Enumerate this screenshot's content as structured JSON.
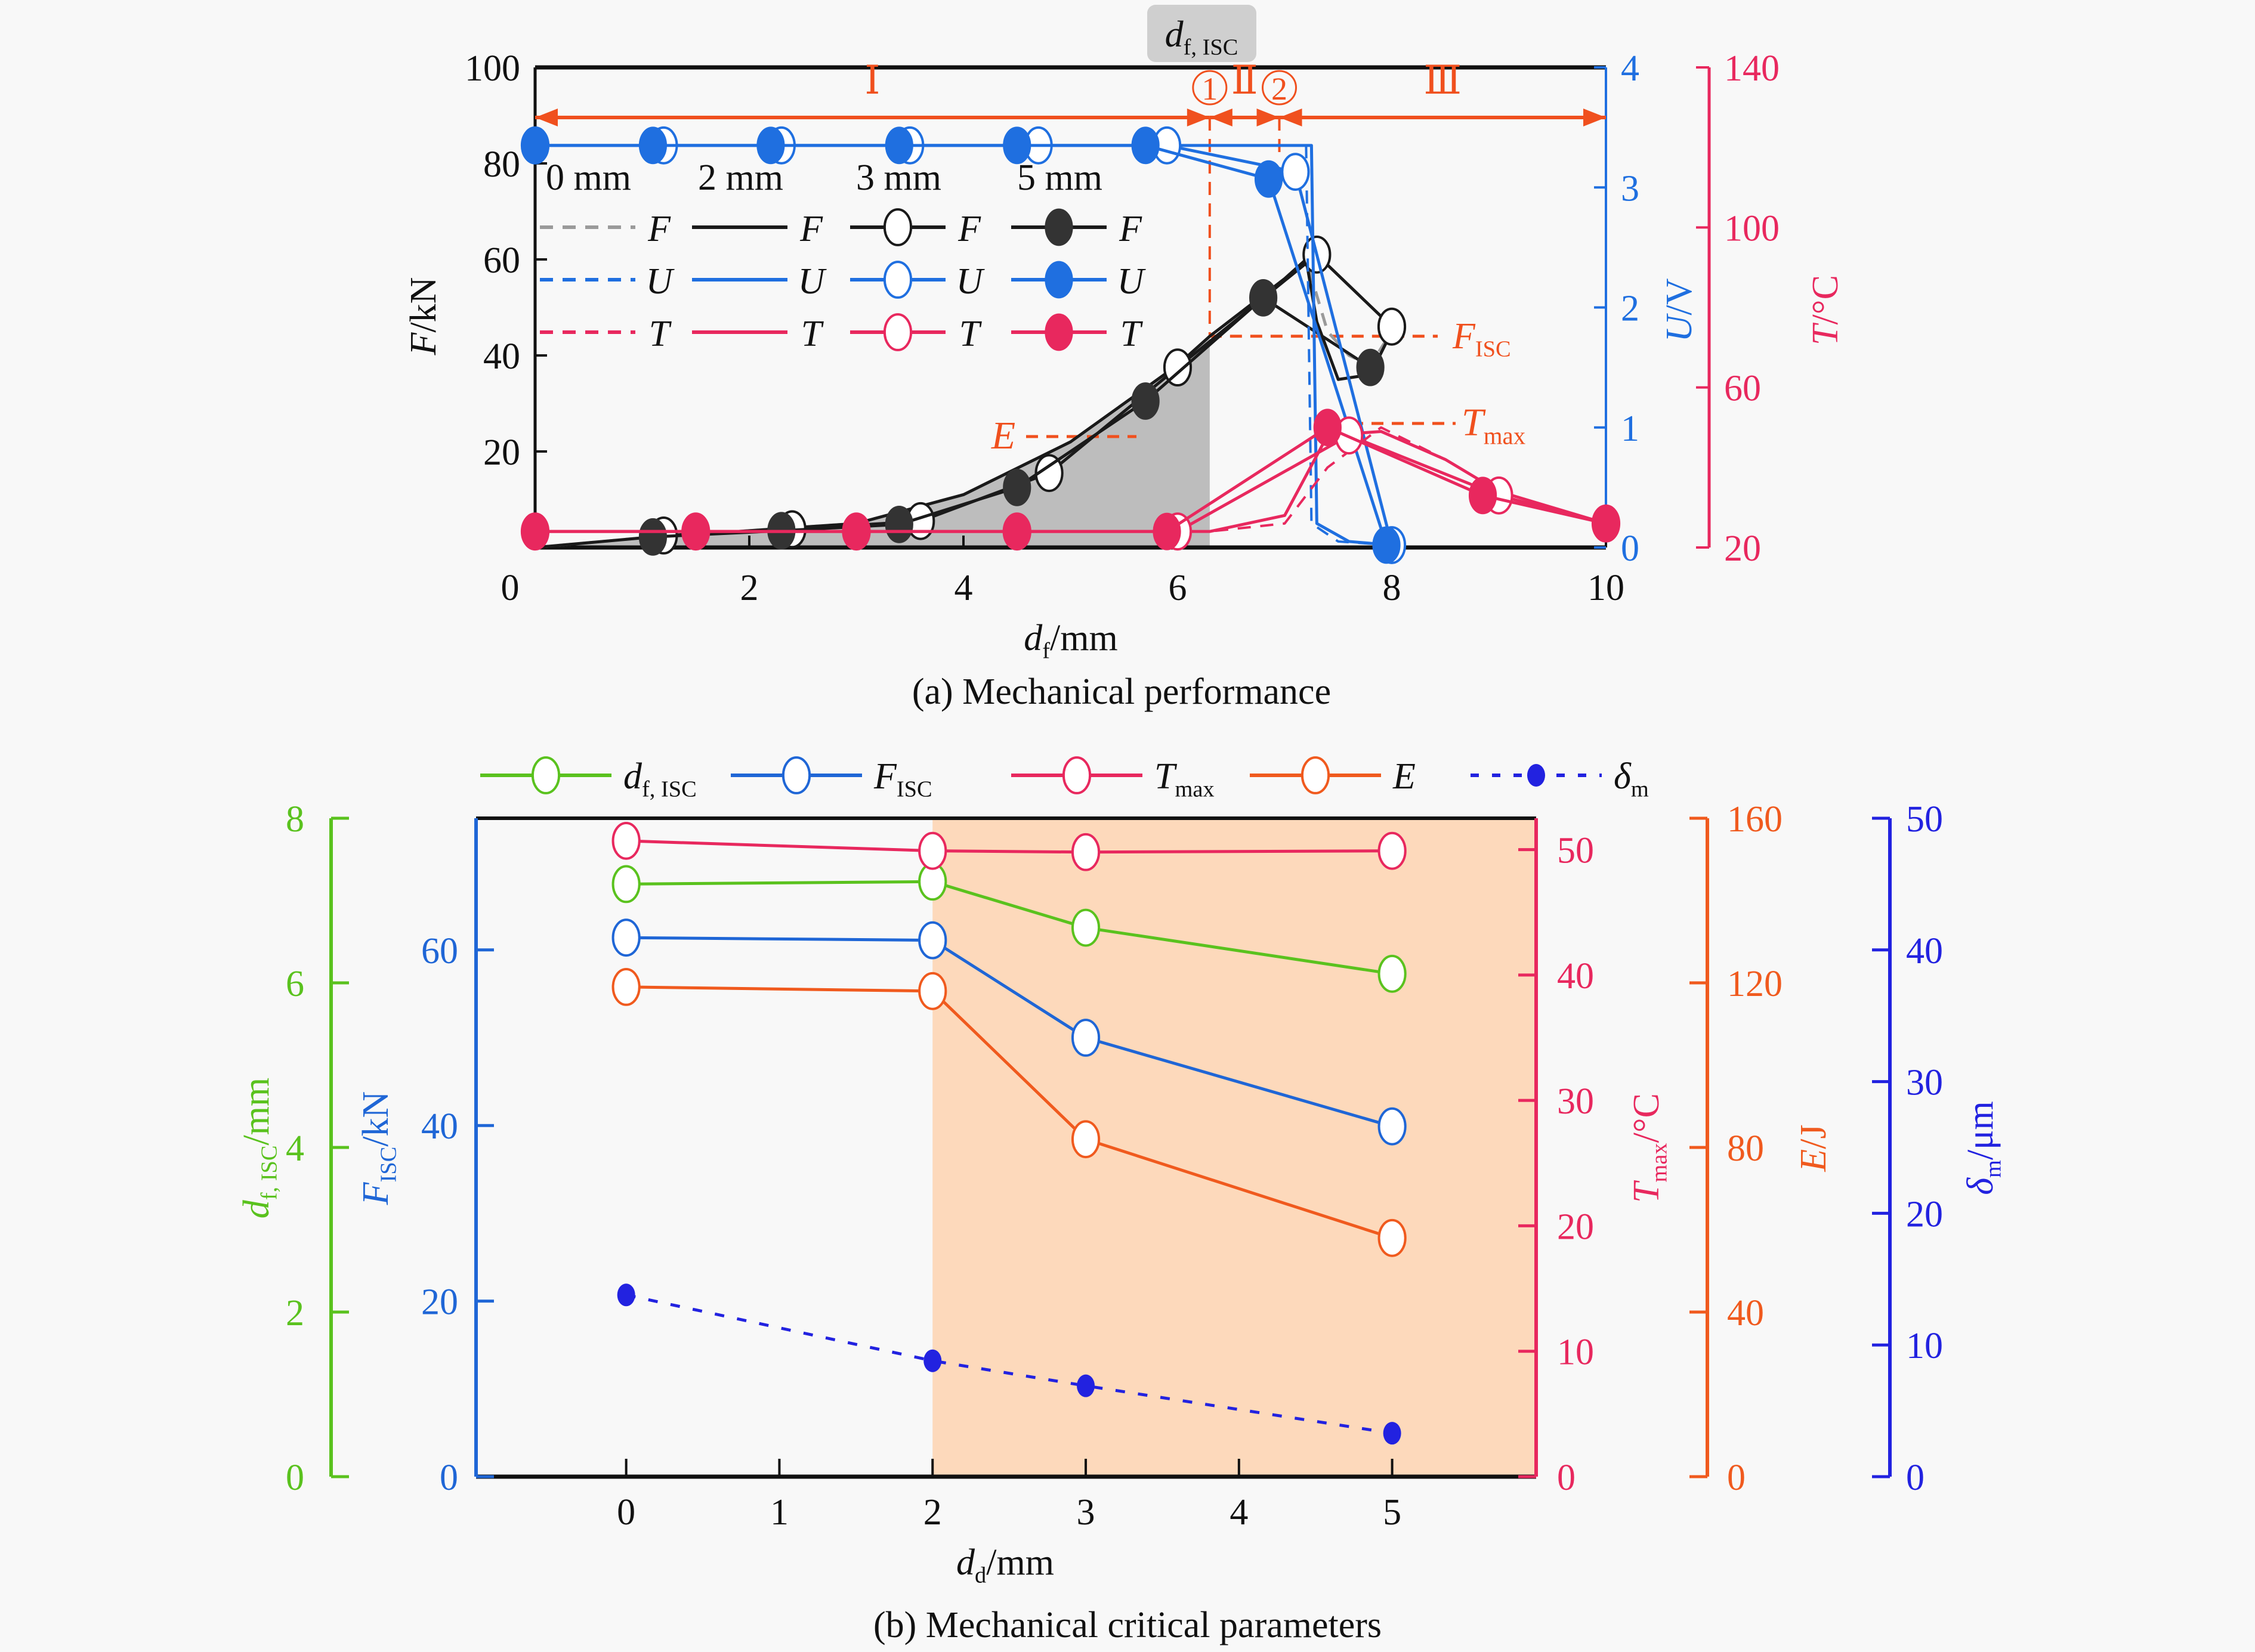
{
  "colors": {
    "black": "#1a1a1a",
    "grey_dash": "#9a9a9a",
    "voltage": "#1f6fe0",
    "temperature": "#e8285e",
    "annotation": "#f0501e",
    "shade_a": "#bdbdbd",
    "shade_b": "#fdd9bb",
    "d_isc": "#5ac21e",
    "f_isc": "#1f66d6",
    "tmax": "#e8285e",
    "energy": "#f05a1e",
    "delta": "#2222e0",
    "badge_bg": "#cfcfcf"
  },
  "chart_data": [
    {
      "id": "a",
      "type": "line",
      "title": "(a) Mechanical performance",
      "xlabel": "d_f/mm",
      "xlabel_main": "d",
      "xlabel_sub": "f",
      "xlabel_unit": "/mm",
      "xlim": [
        0,
        10
      ],
      "xticks": [
        0,
        2,
        4,
        6,
        8,
        10
      ],
      "axes": {
        "F": {
          "label_main": "F",
          "label_unit": "/kN",
          "lim": [
            0,
            100
          ],
          "ticks": [
            20,
            40,
            60,
            80,
            100
          ],
          "side": "left"
        },
        "U": {
          "label_main": "U",
          "label_unit": "/V",
          "lim": [
            0,
            4
          ],
          "ticks": [
            0,
            1,
            2,
            3,
            4
          ],
          "side": "right"
        },
        "T": {
          "label_main": "T",
          "label_unit": "/°C",
          "lim": [
            20,
            140
          ],
          "ticks": [
            20,
            60,
            100,
            140
          ],
          "side": "right-offset"
        }
      },
      "legend": {
        "columns": [
          "0 mm",
          "2 mm",
          "3 mm",
          "5 mm"
        ],
        "rows": [
          "F",
          "U",
          "T"
        ],
        "placement": "upper-left"
      },
      "series": [
        {
          "name": "F 0 mm",
          "axis": "F",
          "style": "dashed-grey",
          "x": [
            0,
            1,
            2,
            3,
            4,
            5,
            6,
            6.3,
            7,
            7.2,
            7.4,
            7.6,
            7.8,
            8.0
          ],
          "y": [
            0,
            2,
            3.5,
            5,
            11,
            22,
            38,
            44,
            56,
            60,
            45,
            40,
            38,
            45
          ]
        },
        {
          "name": "F 2 mm",
          "axis": "F",
          "style": "solid-black",
          "x": [
            0,
            1,
            2,
            3,
            4,
            5,
            6,
            6.3,
            7,
            7.2,
            7.3,
            7.5,
            7.8,
            8.0
          ],
          "y": [
            0,
            2,
            3.5,
            5,
            11,
            22,
            38,
            44,
            56,
            60,
            47,
            35,
            36,
            45
          ]
        },
        {
          "name": "F 3 mm",
          "axis": "F",
          "style": "open-circle",
          "x": [
            1.2,
            2.4,
            3.6,
            4.8,
            6.0,
            7.3,
            8.0
          ],
          "y": [
            2.5,
            3.8,
            5.5,
            15.5,
            37.5,
            61,
            46
          ]
        },
        {
          "name": "F 5 mm",
          "axis": "F",
          "style": "filled-black",
          "x": [
            1.1,
            2.3,
            3.4,
            4.5,
            5.7,
            6.8,
            7.8
          ],
          "y": [
            2.2,
            3.5,
            4.8,
            12.5,
            30.5,
            52,
            37.5
          ]
        },
        {
          "name": "U 0 mm",
          "axis": "U",
          "style": "dashed-blue",
          "x": [
            0,
            6.3,
            7.2,
            7.25,
            7.5,
            8.0
          ],
          "y": [
            3.35,
            3.35,
            3.35,
            0.2,
            0.05,
            0.02
          ]
        },
        {
          "name": "U 2 mm",
          "axis": "U",
          "style": "solid-blue",
          "x": [
            0,
            6.3,
            7.25,
            7.3,
            7.6,
            8.0
          ],
          "y": [
            3.35,
            3.35,
            3.35,
            0.2,
            0.05,
            0.02
          ]
        },
        {
          "name": "U 3 mm",
          "axis": "U",
          "style": "open-circle",
          "x": [
            0,
            1.2,
            2.3,
            3.5,
            4.7,
            5.9,
            7.1,
            8.0
          ],
          "y": [
            3.35,
            3.35,
            3.35,
            3.35,
            3.35,
            3.35,
            3.13,
            0.02
          ]
        },
        {
          "name": "U 5 mm",
          "axis": "U",
          "style": "filled-blue",
          "x": [
            0,
            1.1,
            2.2,
            3.4,
            4.5,
            5.7,
            6.85,
            7.95
          ],
          "y": [
            3.35,
            3.35,
            3.35,
            3.35,
            3.35,
            3.35,
            3.07,
            0.02
          ]
        },
        {
          "name": "T 0 mm",
          "axis": "T",
          "style": "dashed-red",
          "x": [
            0,
            6.3,
            7.0,
            7.4,
            7.9,
            8.5,
            9.0,
            10
          ],
          "y": [
            24,
            24,
            26,
            40,
            50,
            42,
            34,
            26
          ]
        },
        {
          "name": "T 2 mm",
          "axis": "T",
          "style": "solid-red",
          "x": [
            0,
            6.3,
            7.0,
            7.4,
            7.9,
            8.5,
            9.0,
            10
          ],
          "y": [
            24,
            24,
            28,
            48,
            49,
            42,
            34,
            26
          ]
        },
        {
          "name": "T 3 mm",
          "axis": "T",
          "style": "open-circle",
          "x": [
            0,
            1.5,
            3.0,
            4.5,
            6.0,
            7.6,
            9.0,
            10
          ],
          "y": [
            24,
            24,
            24,
            24,
            24,
            48,
            33,
            26
          ]
        },
        {
          "name": "T 5 mm",
          "axis": "T",
          "style": "filled-red",
          "x": [
            0,
            1.5,
            3.0,
            4.5,
            5.9,
            7.4,
            8.85,
            10
          ],
          "y": [
            24,
            24,
            24,
            24,
            24,
            50,
            33,
            26
          ]
        }
      ],
      "shaded_area": {
        "label": "E",
        "x_start": 0,
        "x_end": 6.3,
        "under": "F"
      },
      "annotations": {
        "badge": {
          "main": "d",
          "sub": "f, ISC"
        },
        "markers": [
          {
            "label": "1",
            "x": 6.3
          },
          {
            "label": "2",
            "x": 6.95
          }
        ],
        "regions": [
          {
            "label": "Ⅰ",
            "x_start": 0,
            "x_end": 6.3
          },
          {
            "label": "Ⅱ",
            "x_start": 6.3,
            "x_end": 6.95
          },
          {
            "label": "Ⅲ",
            "x_start": 6.95,
            "x_end": 10
          }
        ],
        "f_isc": {
          "main": "F",
          "sub": "ISC",
          "value": 44
        },
        "e_label": {
          "main": "E"
        },
        "tmax_label": {
          "main": "T",
          "sub": "max"
        }
      }
    },
    {
      "id": "b",
      "type": "line",
      "title": "(b) Mechanical critical parameters",
      "xlabel_main": "d",
      "xlabel_sub": "d",
      "xlabel_unit": "/mm",
      "xlim": [
        -0.98,
        5.94
      ],
      "xticks": [
        0,
        1,
        2,
        3,
        4,
        5
      ],
      "shaded_from_x": 2,
      "categories": [
        0,
        2,
        3,
        5
      ],
      "axes": {
        "d_isc": {
          "label_main": "d",
          "label_sub": "f, ISC",
          "label_unit": "/mm",
          "lim": [
            0,
            8
          ],
          "ticks": [
            0,
            2,
            4,
            6,
            8
          ]
        },
        "f_isc": {
          "label_main": "F",
          "label_sub": "ISC",
          "label_unit": "/kN",
          "lim": [
            0,
            75
          ],
          "ticks": [
            0,
            20,
            40,
            60
          ]
        },
        "tmax": {
          "label_main": "T",
          "label_sub": "max",
          "label_unit": "/°C",
          "lim": [
            0,
            52.5
          ],
          "ticks": [
            0,
            10,
            20,
            30,
            40,
            50
          ]
        },
        "energy": {
          "label_main": "E",
          "label_sub": "",
          "label_unit": "/J",
          "lim": [
            0,
            160
          ],
          "ticks": [
            0,
            40,
            80,
            120,
            160
          ]
        },
        "delta": {
          "label_main": "δ",
          "label_sub": "m",
          "label_unit": "/μm",
          "lim": [
            0,
            50
          ],
          "ticks": [
            0,
            10,
            20,
            30,
            40,
            50
          ]
        }
      },
      "series": [
        {
          "name": "d_f,ISC",
          "legend_main": "d",
          "legend_sub": "f, ISC",
          "axis": "d_isc",
          "x": [
            0,
            2,
            3,
            5
          ],
          "values": [
            7.2,
            7.23,
            6.67,
            6.11
          ],
          "style": "open"
        },
        {
          "name": "F_ISC",
          "legend_main": "F",
          "legend_sub": "ISC",
          "axis": "f_isc",
          "x": [
            0,
            2,
            3,
            5
          ],
          "values": [
            61.4,
            61.1,
            50.0,
            39.9
          ],
          "style": "open"
        },
        {
          "name": "T_max",
          "legend_main": "T",
          "legend_sub": "max",
          "axis": "tmax",
          "x": [
            0,
            2,
            3,
            5
          ],
          "values": [
            50.7,
            49.9,
            49.8,
            49.9
          ],
          "style": "open"
        },
        {
          "name": "E",
          "legend_main": "E",
          "legend_sub": "",
          "axis": "energy",
          "x": [
            0,
            2,
            3,
            5
          ],
          "values": [
            119,
            118,
            82,
            58
          ],
          "style": "open"
        },
        {
          "name": "δm",
          "legend_main": "δ",
          "legend_sub": "m",
          "axis": "delta",
          "x": [
            0,
            2,
            3,
            5
          ],
          "values": [
            13.8,
            8.8,
            6.9,
            3.3
          ],
          "style": "dashed-filled"
        }
      ]
    }
  ]
}
